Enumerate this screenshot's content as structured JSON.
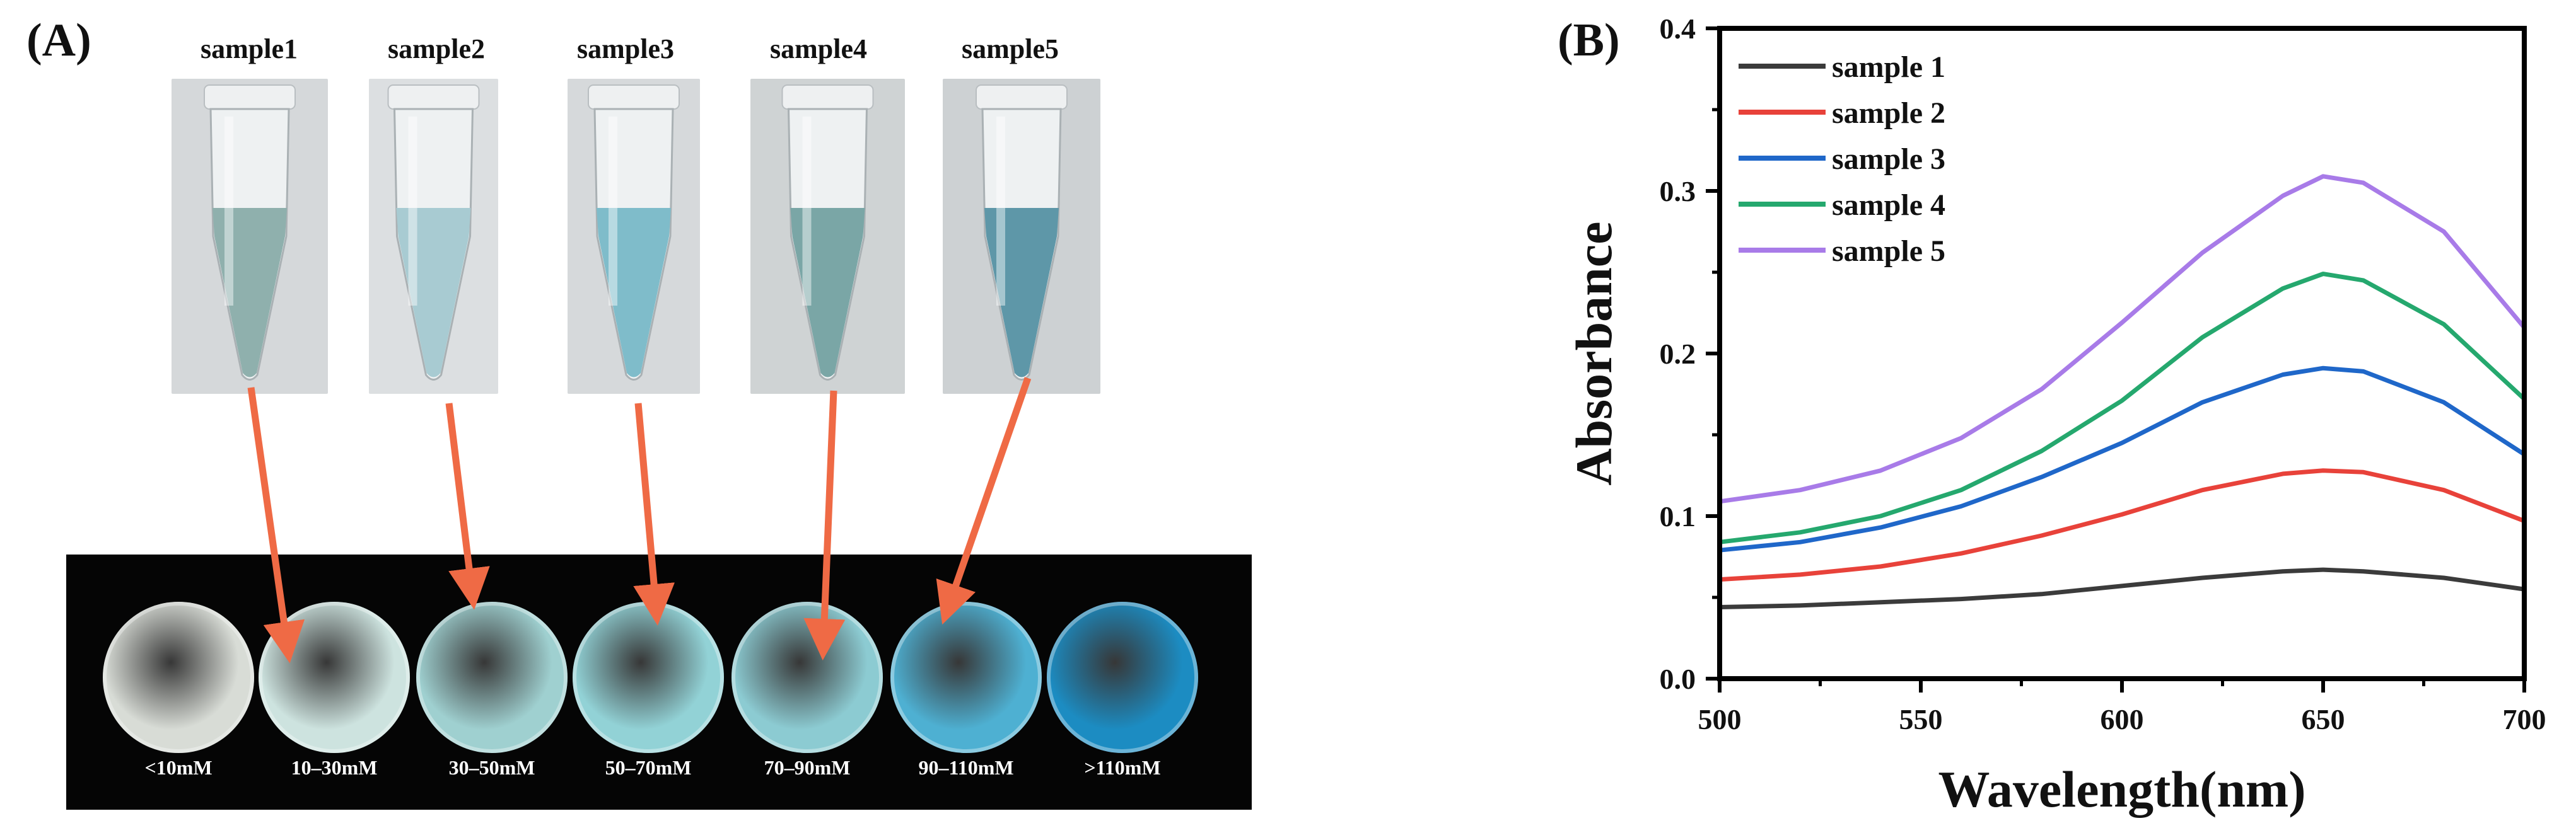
{
  "panel_a": {
    "label": "(A)",
    "tubes": [
      {
        "label": "sample1",
        "liquid": "#8fb0ad",
        "bg": "#d5d8da"
      },
      {
        "label": "sample2",
        "liquid": "#a8cbd2",
        "bg": "#dcdfe1"
      },
      {
        "label": "sample3",
        "liquid": "#7fbcca",
        "bg": "#d6d9db"
      },
      {
        "label": "sample4",
        "liquid": "#7aa6a6",
        "bg": "#cfd3d4"
      },
      {
        "label": "sample5",
        "liquid": "#5e97a8",
        "bg": "#cdd1d3"
      }
    ],
    "wells": [
      {
        "label": "<10mM",
        "color": "#d8dcd6"
      },
      {
        "label": "10–30mM",
        "color": "#cde3df"
      },
      {
        "label": "30–50mM",
        "color": "#9fd0d0"
      },
      {
        "label": "50–70mM",
        "color": "#92d2d6"
      },
      {
        "label": "70–90mM",
        "color": "#8ccbd2"
      },
      {
        "label": "90–110mM",
        "color": "#4eb0d2"
      },
      {
        "label": ">110mM",
        "color": "#1c8cc2"
      }
    ],
    "arrow_color": "#ef6a45"
  },
  "panel_b": {
    "label": "(B)"
  },
  "chart_data": {
    "type": "line",
    "title": "",
    "xlabel": "Wavelength(nm)",
    "ylabel": "Absorbance",
    "xlim": [
      500,
      700
    ],
    "ylim": [
      0.0,
      0.4
    ],
    "xticks": [
      500,
      550,
      600,
      650,
      700
    ],
    "yticks": [
      0.0,
      0.1,
      0.2,
      0.3,
      0.4
    ],
    "ytick_labels": [
      "0.0",
      "0.1",
      "0.2",
      "0.3",
      "0.4"
    ],
    "legend_position": "top-left",
    "grid": false,
    "x": [
      500,
      520,
      540,
      560,
      580,
      600,
      620,
      640,
      650,
      660,
      680,
      700
    ],
    "series": [
      {
        "name": "sample 1",
        "color": "#3b3b3b",
        "values": [
          0.044,
          0.045,
          0.047,
          0.049,
          0.052,
          0.057,
          0.062,
          0.066,
          0.067,
          0.066,
          0.062,
          0.055
        ]
      },
      {
        "name": "sample 2",
        "color": "#e8423a",
        "values": [
          0.061,
          0.064,
          0.069,
          0.077,
          0.088,
          0.101,
          0.116,
          0.126,
          0.128,
          0.127,
          0.116,
          0.097
        ]
      },
      {
        "name": "sample 3",
        "color": "#1f67c9",
        "values": [
          0.079,
          0.084,
          0.093,
          0.106,
          0.124,
          0.145,
          0.17,
          0.187,
          0.191,
          0.189,
          0.17,
          0.138
        ]
      },
      {
        "name": "sample 4",
        "color": "#25a86e",
        "values": [
          0.084,
          0.09,
          0.1,
          0.116,
          0.14,
          0.171,
          0.21,
          0.24,
          0.249,
          0.245,
          0.218,
          0.172
        ]
      },
      {
        "name": "sample 5",
        "color": "#a87be8",
        "values": [
          0.109,
          0.116,
          0.128,
          0.148,
          0.178,
          0.219,
          0.262,
          0.297,
          0.309,
          0.305,
          0.275,
          0.216
        ]
      }
    ]
  }
}
